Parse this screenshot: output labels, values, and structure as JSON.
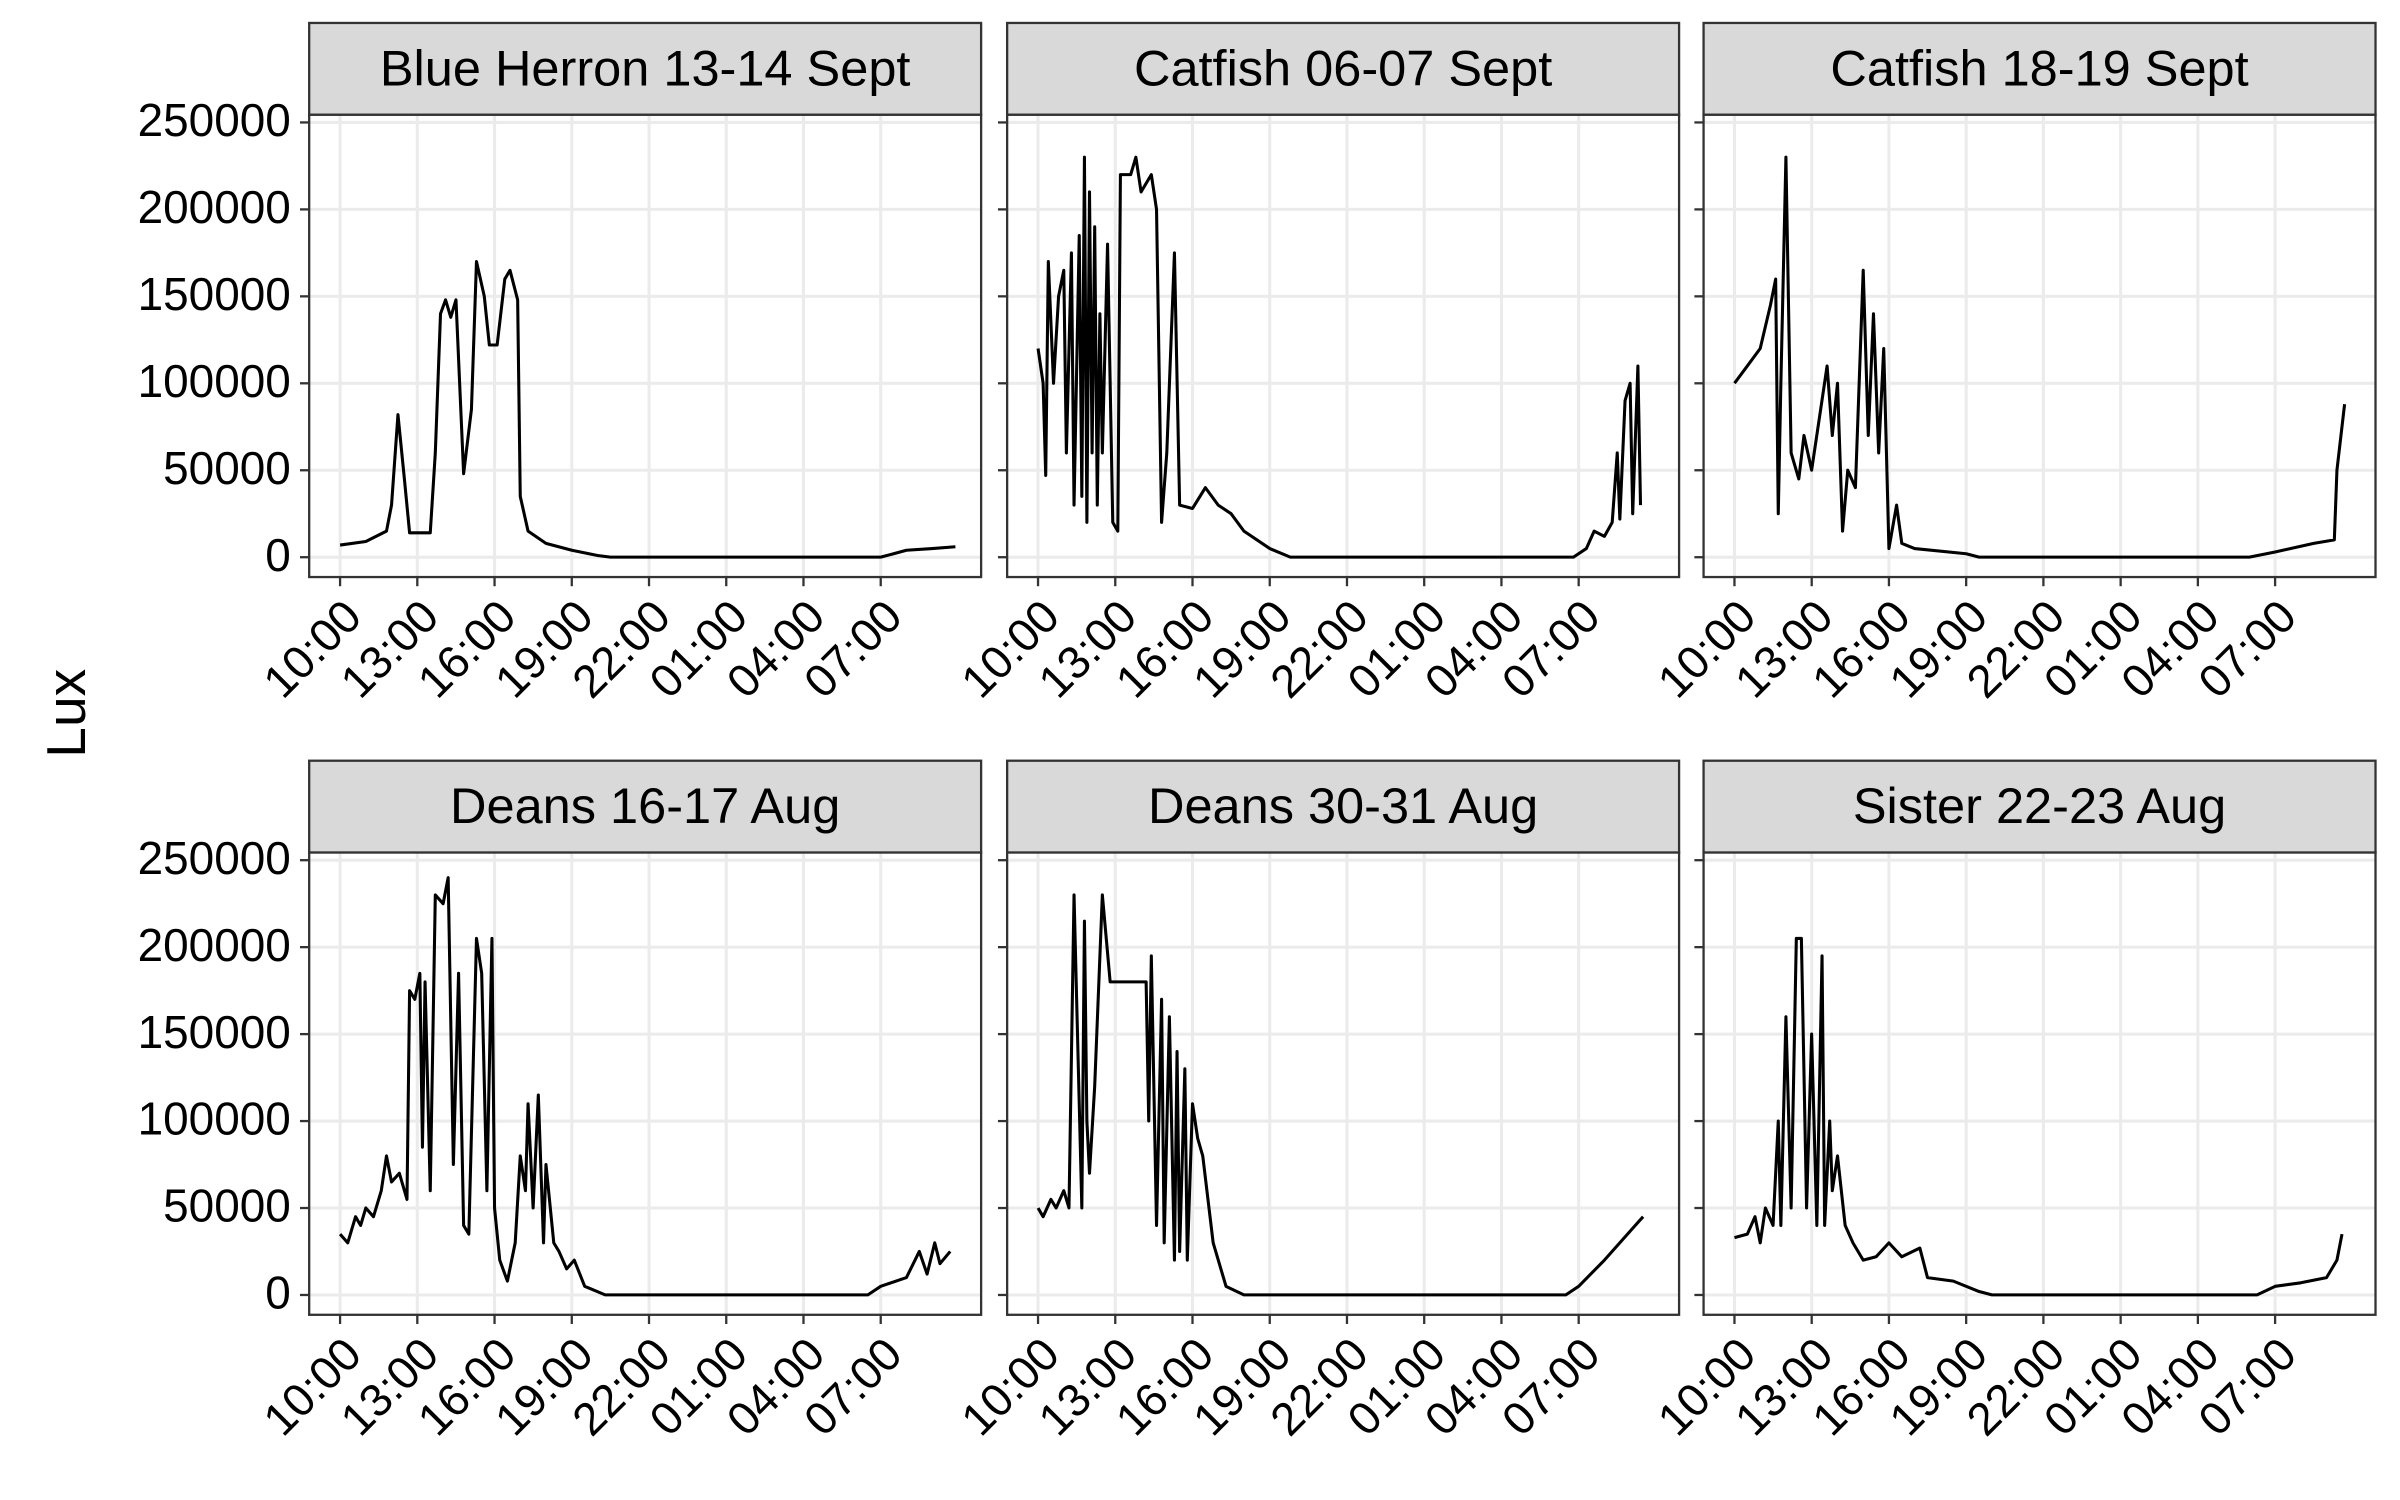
{
  "y_label": "Lux",
  "chart_data": [
    {
      "type": "line",
      "title": "Blue Herron 13-14 Sept",
      "color": "#000000",
      "grid": true,
      "xlim": [
        8.8,
        34.9
      ],
      "ylim": [
        -11400,
        254400
      ],
      "xticks": [
        {
          "value": 10,
          "label": "10:00"
        },
        {
          "value": 13,
          "label": "13:00"
        },
        {
          "value": 16,
          "label": "16:00"
        },
        {
          "value": 19,
          "label": "19:00"
        },
        {
          "value": 22,
          "label": "22:00"
        },
        {
          "value": 25,
          "label": "01:00"
        },
        {
          "value": 28,
          "label": "04:00"
        },
        {
          "value": 31,
          "label": "07:00"
        }
      ],
      "yticks": [
        0,
        50000,
        100000,
        150000,
        200000,
        250000
      ],
      "x": [
        10,
        11,
        11.8,
        12,
        12.25,
        12.5,
        12.7,
        13.5,
        13.7,
        13.9,
        14.1,
        14.3,
        14.5,
        14.8,
        15.1,
        15.3,
        15.6,
        15.8,
        16.1,
        16.4,
        16.6,
        16.9,
        17,
        17.3,
        18,
        19,
        20,
        20.5,
        31,
        31.5,
        32,
        33,
        33.9
      ],
      "values": [
        7000,
        9000,
        15000,
        30000,
        82000,
        45000,
        14000,
        14000,
        60000,
        140000,
        148000,
        138000,
        148000,
        48000,
        85000,
        170000,
        150000,
        122000,
        122000,
        160000,
        165000,
        148000,
        35000,
        15000,
        8000,
        4000,
        1000,
        0,
        0,
        2000,
        4000,
        5000,
        6000
      ]
    },
    {
      "type": "line",
      "title": "Catfish 06-07 Sept",
      "color": "#000000",
      "grid": true,
      "xlim": [
        8.8,
        34.9
      ],
      "ylim": [
        -11400,
        254400
      ],
      "xticks": [
        {
          "value": 10,
          "label": "10:00"
        },
        {
          "value": 13,
          "label": "13:00"
        },
        {
          "value": 16,
          "label": "16:00"
        },
        {
          "value": 19,
          "label": "19:00"
        },
        {
          "value": 22,
          "label": "22:00"
        },
        {
          "value": 25,
          "label": "01:00"
        },
        {
          "value": 28,
          "label": "04:00"
        },
        {
          "value": 31,
          "label": "07:00"
        }
      ],
      "yticks": [
        0,
        50000,
        100000,
        150000,
        200000,
        250000
      ],
      "x": [
        10,
        10.2,
        10.3,
        10.4,
        10.6,
        10.8,
        11,
        11.1,
        11.3,
        11.4,
        11.6,
        11.7,
        11.8,
        11.9,
        12,
        12.1,
        12.2,
        12.3,
        12.4,
        12.5,
        12.7,
        12.9,
        13.1,
        13.2,
        13.6,
        13.8,
        14,
        14.2,
        14.4,
        14.6,
        14.8,
        15,
        15.3,
        15.5,
        16,
        16.5,
        17,
        17.5,
        18,
        19,
        19.8,
        30.8,
        31.3,
        31.6,
        32,
        32.3,
        32.5,
        32.6,
        32.8,
        33,
        33.1,
        33.3,
        33.4
      ],
      "values": [
        120000,
        100000,
        47000,
        170000,
        100000,
        150000,
        165000,
        60000,
        175000,
        30000,
        185000,
        35000,
        230000,
        20000,
        210000,
        60000,
        190000,
        30000,
        140000,
        60000,
        180000,
        20000,
        15000,
        220000,
        220000,
        230000,
        210000,
        215000,
        220000,
        200000,
        20000,
        60000,
        175000,
        30000,
        28000,
        40000,
        30000,
        25000,
        15000,
        5000,
        0,
        0,
        5000,
        15000,
        12000,
        20000,
        60000,
        22000,
        90000,
        100000,
        25000,
        110000,
        30000
      ]
    },
    {
      "type": "line",
      "title": "Catfish 18-19 Sept",
      "color": "#000000",
      "grid": true,
      "xlim": [
        8.8,
        34.9
      ],
      "ylim": [
        -11400,
        254400
      ],
      "xticks": [
        {
          "value": 10,
          "label": "10:00"
        },
        {
          "value": 13,
          "label": "13:00"
        },
        {
          "value": 16,
          "label": "16:00"
        },
        {
          "value": 19,
          "label": "19:00"
        },
        {
          "value": 22,
          "label": "22:00"
        },
        {
          "value": 25,
          "label": "01:00"
        },
        {
          "value": 28,
          "label": "04:00"
        },
        {
          "value": 31,
          "label": "07:00"
        }
      ],
      "yticks": [
        0,
        50000,
        100000,
        150000,
        200000,
        250000
      ],
      "x": [
        10,
        10.5,
        11,
        11.4,
        11.6,
        11.7,
        11.8,
        12,
        12.2,
        12.5,
        12.7,
        13,
        13.6,
        13.8,
        14,
        14.2,
        14.4,
        14.7,
        15,
        15.2,
        15.4,
        15.6,
        15.8,
        16,
        16.3,
        16.5,
        17,
        19,
        19.5,
        30,
        31,
        32.5,
        33.3,
        33.4,
        33.7
      ],
      "values": [
        100000,
        110000,
        120000,
        145000,
        160000,
        25000,
        100000,
        230000,
        60000,
        45000,
        70000,
        50000,
        110000,
        70000,
        100000,
        15000,
        50000,
        40000,
        165000,
        70000,
        140000,
        60000,
        120000,
        5000,
        30000,
        8000,
        5000,
        2000,
        0,
        0,
        3000,
        8000,
        10000,
        50000,
        88000
      ]
    },
    {
      "type": "line",
      "title": "Deans 16-17 Aug",
      "color": "#000000",
      "grid": true,
      "xlim": [
        8.8,
        34.9
      ],
      "ylim": [
        -11400,
        254400
      ],
      "xticks": [
        {
          "value": 10,
          "label": "10:00"
        },
        {
          "value": 13,
          "label": "13:00"
        },
        {
          "value": 16,
          "label": "16:00"
        },
        {
          "value": 19,
          "label": "19:00"
        },
        {
          "value": 22,
          "label": "22:00"
        },
        {
          "value": 25,
          "label": "01:00"
        },
        {
          "value": 28,
          "label": "04:00"
        },
        {
          "value": 31,
          "label": "07:00"
        }
      ],
      "yticks": [
        0,
        50000,
        100000,
        150000,
        200000,
        250000
      ],
      "x": [
        10,
        10.3,
        10.6,
        10.8,
        11,
        11.3,
        11.6,
        11.8,
        12,
        12.3,
        12.6,
        12.7,
        12.9,
        13.1,
        13.2,
        13.3,
        13.5,
        13.7,
        14,
        14.2,
        14.4,
        14.6,
        14.8,
        15,
        15.3,
        15.5,
        15.7,
        15.9,
        16,
        16.2,
        16.5,
        16.8,
        17,
        17.2,
        17.3,
        17.5,
        17.7,
        17.9,
        18,
        18.3,
        18.5,
        18.8,
        19.1,
        19.5,
        20.3,
        30.5,
        31,
        32,
        32.5,
        32.8,
        33.1,
        33.3,
        33.7
      ],
      "values": [
        35000,
        30000,
        45000,
        40000,
        50000,
        45000,
        60000,
        80000,
        65000,
        70000,
        55000,
        175000,
        170000,
        185000,
        85000,
        180000,
        60000,
        230000,
        225000,
        240000,
        75000,
        185000,
        40000,
        35000,
        205000,
        185000,
        60000,
        205000,
        50000,
        20000,
        8000,
        30000,
        80000,
        60000,
        110000,
        50000,
        115000,
        30000,
        75000,
        30000,
        25000,
        15000,
        20000,
        5000,
        0,
        0,
        5000,
        10000,
        25000,
        12000,
        30000,
        18000,
        25000
      ]
    },
    {
      "type": "line",
      "title": "Deans 30-31 Aug",
      "color": "#000000",
      "grid": true,
      "xlim": [
        8.8,
        34.9
      ],
      "ylim": [
        -11400,
        254400
      ],
      "xticks": [
        {
          "value": 10,
          "label": "10:00"
        },
        {
          "value": 13,
          "label": "13:00"
        },
        {
          "value": 16,
          "label": "16:00"
        },
        {
          "value": 19,
          "label": "19:00"
        },
        {
          "value": 22,
          "label": "22:00"
        },
        {
          "value": 25,
          "label": "01:00"
        },
        {
          "value": 28,
          "label": "04:00"
        },
        {
          "value": 31,
          "label": "07:00"
        }
      ],
      "yticks": [
        0,
        50000,
        100000,
        150000,
        200000,
        250000
      ],
      "x": [
        10,
        10.2,
        10.5,
        10.7,
        11,
        11.2,
        11.4,
        11.7,
        11.8,
        11.9,
        12,
        12.2,
        12.5,
        12.8,
        14.2,
        14.3,
        14.4,
        14.6,
        14.8,
        14.9,
        15.1,
        15.3,
        15.4,
        15.5,
        15.7,
        15.8,
        16,
        16.2,
        16.4,
        16.8,
        17.3,
        18,
        30.5,
        31,
        32,
        33.2,
        33.5
      ],
      "values": [
        50000,
        45000,
        55000,
        50000,
        60000,
        50000,
        230000,
        50000,
        215000,
        100000,
        70000,
        120000,
        230000,
        180000,
        180000,
        100000,
        195000,
        40000,
        170000,
        30000,
        160000,
        20000,
        140000,
        25000,
        130000,
        20000,
        110000,
        90000,
        80000,
        30000,
        5000,
        0,
        0,
        5000,
        20000,
        40000,
        45000
      ]
    },
    {
      "type": "line",
      "title": "Sister 22-23 Aug",
      "color": "#000000",
      "grid": true,
      "xlim": [
        8.8,
        34.9
      ],
      "ylim": [
        -11400,
        254400
      ],
      "xticks": [
        {
          "value": 10,
          "label": "10:00"
        },
        {
          "value": 13,
          "label": "13:00"
        },
        {
          "value": 16,
          "label": "16:00"
        },
        {
          "value": 19,
          "label": "19:00"
        },
        {
          "value": 22,
          "label": "22:00"
        },
        {
          "value": 25,
          "label": "01:00"
        },
        {
          "value": 28,
          "label": "04:00"
        },
        {
          "value": 31,
          "label": "07:00"
        }
      ],
      "yticks": [
        0,
        50000,
        100000,
        150000,
        200000,
        250000
      ],
      "x": [
        10,
        10.5,
        10.8,
        11,
        11.2,
        11.5,
        11.7,
        11.8,
        12,
        12.2,
        12.4,
        12.6,
        12.8,
        13,
        13.2,
        13.4,
        13.5,
        13.7,
        13.8,
        14,
        14.3,
        14.6,
        15,
        15.5,
        16,
        16.5,
        17.2,
        17.5,
        18.5,
        19.5,
        20,
        30.3,
        31,
        32,
        33,
        33.4,
        33.6
      ],
      "values": [
        33000,
        35000,
        45000,
        30000,
        50000,
        40000,
        100000,
        40000,
        160000,
        50000,
        205000,
        205000,
        50000,
        150000,
        40000,
        195000,
        40000,
        100000,
        60000,
        80000,
        40000,
        30000,
        20000,
        22000,
        30000,
        22000,
        27000,
        10000,
        8000,
        2000,
        0,
        0,
        5000,
        7000,
        10000,
        20000,
        35000
      ]
    }
  ]
}
